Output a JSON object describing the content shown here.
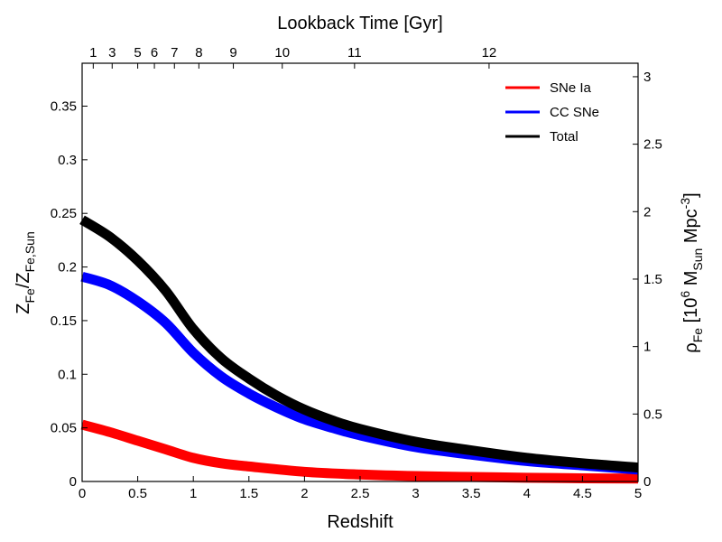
{
  "chart_data": {
    "type": "line",
    "xlabel": "Redshift",
    "x_ticks": [
      "0",
      "0.5",
      "1",
      "1.5",
      "2",
      "2.5",
      "3",
      "3.5",
      "4",
      "4.5",
      "5"
    ],
    "xlim": [
      0,
      5
    ],
    "ylabel_left": {
      "main": "Z",
      "sub1": "Fe",
      "mid": "/Z",
      "sub2": "Fe,Sun"
    },
    "ylim_left": [
      0,
      0.39
    ],
    "y_ticks_left": [
      "0",
      "0.05",
      "0.1",
      "0.15",
      "0.2",
      "0.25",
      "0.3",
      "0.35"
    ],
    "ylabel_right": {
      "rho": "ρ",
      "sub_fe": "Fe",
      "open": " [10",
      "exp": "6",
      "m": " M",
      "sub_sun": "Sun",
      "mpc": " Mpc",
      "exp2": "-3",
      "close": "]"
    },
    "ylim_right": [
      0,
      3.1
    ],
    "y_ticks_right": [
      "0",
      "0.5",
      "1",
      "1.5",
      "2",
      "2.5",
      "3"
    ],
    "top_axis": {
      "label": "Lookback Time [Gyr]",
      "ticks": [
        {
          "label": "1",
          "z": 0.1
        },
        {
          "label": "3",
          "z": 0.27
        },
        {
          "label": "5",
          "z": 0.5
        },
        {
          "label": "6",
          "z": 0.65
        },
        {
          "label": "7",
          "z": 0.83
        },
        {
          "label": "8",
          "z": 1.05
        },
        {
          "label": "9",
          "z": 1.36
        },
        {
          "label": "10",
          "z": 1.8
        },
        {
          "label": "11",
          "z": 2.45
        },
        {
          "label": "12",
          "z": 3.66
        }
      ]
    },
    "series": [
      {
        "name": "SNe Ia",
        "color": "#ff0000",
        "x": [
          0,
          0.25,
          0.5,
          0.75,
          1,
          1.25,
          1.5,
          2,
          2.5,
          3,
          3.5,
          4,
          4.5,
          5
        ],
        "values": [
          0.053,
          0.046,
          0.038,
          0.03,
          0.022,
          0.017,
          0.014,
          0.009,
          0.0065,
          0.005,
          0.0042,
          0.0035,
          0.003,
          0.0027
        ]
      },
      {
        "name": "CC SNe",
        "color": "#0000ff",
        "x": [
          0,
          0.25,
          0.5,
          0.75,
          1,
          1.25,
          1.5,
          1.75,
          2,
          2.25,
          2.5,
          3,
          3.5,
          4,
          4.5,
          5
        ],
        "values": [
          0.191,
          0.183,
          0.168,
          0.148,
          0.12,
          0.098,
          0.082,
          0.069,
          0.058,
          0.05,
          0.043,
          0.032,
          0.025,
          0.019,
          0.015,
          0.011
        ]
      },
      {
        "name": "Total",
        "color": "#000000",
        "x": [
          0,
          0.25,
          0.5,
          0.75,
          1,
          1.25,
          1.5,
          1.75,
          2,
          2.25,
          2.5,
          3,
          3.5,
          4,
          4.5,
          5
        ],
        "values": [
          0.244,
          0.228,
          0.206,
          0.178,
          0.142,
          0.115,
          0.096,
          0.08,
          0.067,
          0.057,
          0.049,
          0.037,
          0.029,
          0.022,
          0.017,
          0.013
        ]
      }
    ],
    "legend": {
      "position": "top-right",
      "entries": [
        "SNe Ia",
        "CC SNe",
        "Total"
      ]
    },
    "grid": false
  }
}
